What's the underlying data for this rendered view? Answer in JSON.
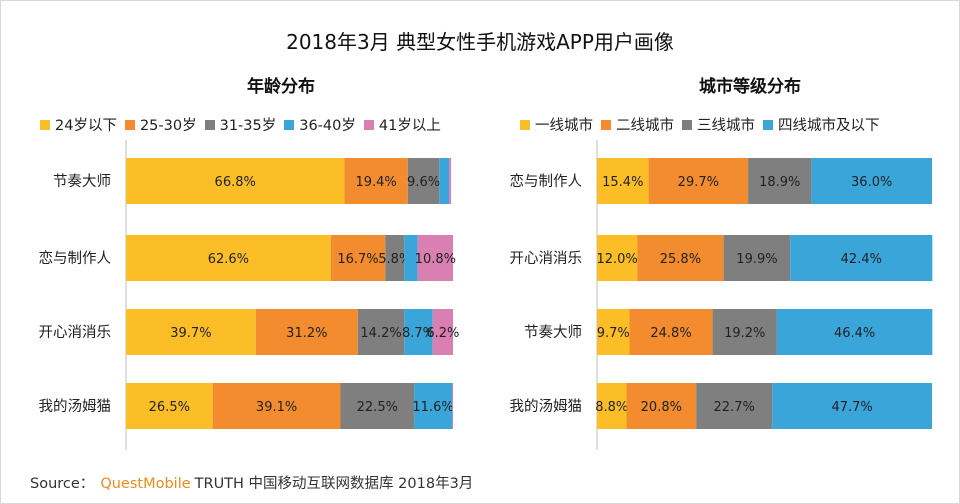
{
  "title": "2018年3月 典型女性手机游戏APP用户画像",
  "colors": {
    "yellow": "#FBBE26",
    "orange": "#F28C2E",
    "gray": "#7F7F7F",
    "blue": "#3AA5D9",
    "pink": "#D97FB2",
    "axis": "#bfbfbf"
  },
  "source": {
    "prefix": "Source：",
    "brand": "QuestMobile",
    "suffix": "TRUTH 中国移动互联网数据库 2018年3月"
  },
  "chart_data": [
    {
      "type": "bar",
      "orientation": "horizontal",
      "stacked": true,
      "title": "年龄分布",
      "categories": [
        "节奏大师",
        "恋与制作人",
        "开心消消乐",
        "我的汤姆猫"
      ],
      "series": [
        {
          "name": "24岁以下",
          "color": "#FBBE26",
          "values": [
            66.8,
            62.6,
            39.7,
            26.5
          ],
          "labels": [
            "66.8%",
            "62.6%",
            "39.7%",
            "26.5%"
          ]
        },
        {
          "name": "25-30岁",
          "color": "#F28C2E",
          "values": [
            19.4,
            16.7,
            31.2,
            39.1
          ],
          "labels": [
            "19.4%",
            "16.7%",
            "31.2%",
            "39.1%"
          ]
        },
        {
          "name": "31-35岁",
          "color": "#7F7F7F",
          "values": [
            9.6,
            5.8,
            14.2,
            22.5
          ],
          "labels": [
            "9.6%",
            "5.8%",
            "14.2%",
            "22.5%"
          ]
        },
        {
          "name": "36-40岁",
          "color": "#3AA5D9",
          "values": [
            3.0,
            4.1,
            8.7,
            11.6
          ],
          "labels": [
            "",
            "",
            "8.7%",
            "11.6%"
          ]
        },
        {
          "name": "41岁以上",
          "color": "#D97FB2",
          "values": [
            0.6,
            10.8,
            6.2,
            0.3
          ],
          "labels": [
            "",
            "10.8%",
            "6.2%",
            ""
          ]
        }
      ],
      "xlim": [
        0,
        100
      ],
      "legend": "top"
    },
    {
      "type": "bar",
      "orientation": "horizontal",
      "stacked": true,
      "title": "城市等级分布",
      "categories": [
        "恋与制作人",
        "开心消消乐",
        "节奏大师",
        "我的汤姆猫"
      ],
      "series": [
        {
          "name": "一线城市",
          "color": "#FBBE26",
          "values": [
            15.4,
            12.0,
            9.7,
            8.8
          ],
          "labels": [
            "15.4%",
            "12.0%",
            "9.7%",
            "8.8%"
          ]
        },
        {
          "name": "二线城市",
          "color": "#F28C2E",
          "values": [
            29.7,
            25.8,
            24.8,
            20.8
          ],
          "labels": [
            "29.7%",
            "25.8%",
            "24.8%",
            "20.8%"
          ]
        },
        {
          "name": "三线城市",
          "color": "#7F7F7F",
          "values": [
            18.9,
            19.9,
            19.2,
            22.7
          ],
          "labels": [
            "18.9%",
            "19.9%",
            "19.2%",
            "22.7%"
          ]
        },
        {
          "name": "四线城市及以下",
          "color": "#3AA5D9",
          "values": [
            36.0,
            42.4,
            46.4,
            47.7
          ],
          "labels": [
            "36.0%",
            "42.4%",
            "46.4%",
            "47.7%"
          ]
        }
      ],
      "xlim": [
        0,
        100
      ],
      "legend": "top"
    }
  ]
}
